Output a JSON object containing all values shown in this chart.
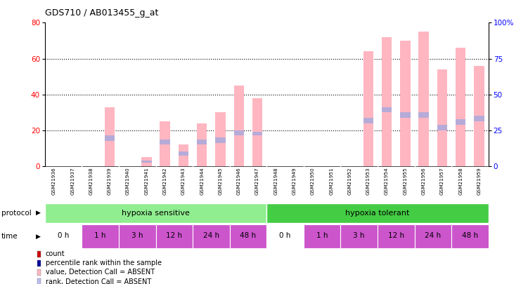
{
  "title": "GDS710 / AB013455_g_at",
  "samples": [
    "GSM21936",
    "GSM21937",
    "GSM21938",
    "GSM21939",
    "GSM21940",
    "GSM21941",
    "GSM21942",
    "GSM21943",
    "GSM21944",
    "GSM21945",
    "GSM21946",
    "GSM21947",
    "GSM21948",
    "GSM21949",
    "GSM21950",
    "GSM21951",
    "GSM21952",
    "GSM21953",
    "GSM21954",
    "GSM21955",
    "GSM21956",
    "GSM21957",
    "GSM21958",
    "GSM21959"
  ],
  "pink_values": [
    0,
    0,
    0,
    33,
    0,
    5,
    25,
    12,
    24,
    30,
    45,
    38,
    0,
    0,
    0,
    0,
    0,
    64,
    72,
    70,
    75,
    54,
    66,
    56
  ],
  "blue_rank_top": [
    0,
    0,
    0,
    17,
    0,
    3,
    15,
    8,
    15,
    16,
    20,
    19,
    0,
    0,
    0,
    0,
    0,
    27,
    33,
    30,
    30,
    23,
    26,
    28
  ],
  "blue_rank_bot": [
    0,
    0,
    0,
    14,
    0,
    2,
    12,
    6,
    12,
    13,
    17,
    17,
    0,
    0,
    0,
    0,
    0,
    24,
    30,
    27,
    27,
    20,
    23,
    25
  ],
  "ylim_left": [
    0,
    80
  ],
  "ylim_right": [
    0,
    100
  ],
  "yticks_left": [
    0,
    20,
    40,
    60,
    80
  ],
  "yticks_right": [
    0,
    25,
    50,
    75,
    100
  ],
  "ytick_labels_right": [
    "0",
    "25",
    "50",
    "75",
    "100%"
  ],
  "color_pink": "#FFB6C1",
  "color_blue_rank": "#AAAADD",
  "legend_count_color": "#CC0000",
  "legend_rank_color": "#000099",
  "legend_pink_color": "#FFB6C1",
  "legend_blue_color": "#BBBBEE",
  "bg_sample_header": "#DDDDDD",
  "protocol_green_light": "#90EE90",
  "protocol_green_dark": "#44CC44",
  "time_white": "#FFFFFF",
  "time_pink": "#CC55CC",
  "bar_width": 0.55
}
